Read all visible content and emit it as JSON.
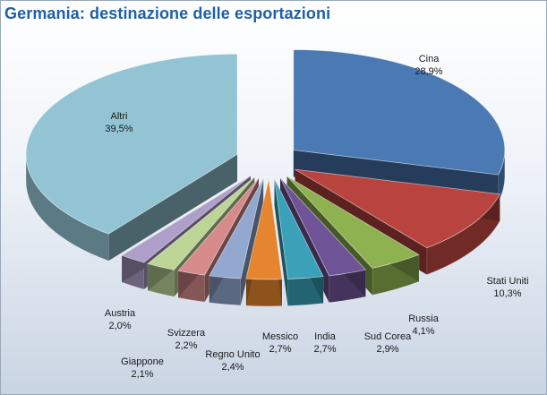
{
  "chart_data": {
    "type": "pie",
    "title": "Germania: destinazione delle esportazioni",
    "slices": [
      {
        "label": "Cina",
        "value": 28.9,
        "value_label": "28,9%",
        "color": "#4a79b4"
      },
      {
        "label": "Stati Uniti",
        "value": 10.3,
        "value_label": "10,3%",
        "color": "#b8433f"
      },
      {
        "label": "Russia",
        "value": 4.1,
        "value_label": "4,1%",
        "color": "#8eb24f"
      },
      {
        "label": "Sud Corea",
        "value": 2.9,
        "value_label": "2,9%",
        "color": "#6e5396"
      },
      {
        "label": "India",
        "value": 2.7,
        "value_label": "2,7%",
        "color": "#3aa1b8"
      },
      {
        "label": "Messico",
        "value": 2.7,
        "value_label": "2,7%",
        "color": "#e5852f"
      },
      {
        "label": "Regno Unito",
        "value": 2.4,
        "value_label": "2,4%",
        "color": "#93a8d0"
      },
      {
        "label": "Giappone",
        "value": 2.1,
        "value_label": "2,1%",
        "color": "#d68a8a"
      },
      {
        "label": "Svizzera",
        "value": 2.2,
        "value_label": "2,2%",
        "color": "#bcd597"
      },
      {
        "label": "Austria",
        "value": 2.0,
        "value_label": "2,0%",
        "color": "#ae9fc8"
      },
      {
        "label": "Altri",
        "value": 39.5,
        "value_label": "39,5%",
        "color": "#92c4d3"
      }
    ]
  }
}
